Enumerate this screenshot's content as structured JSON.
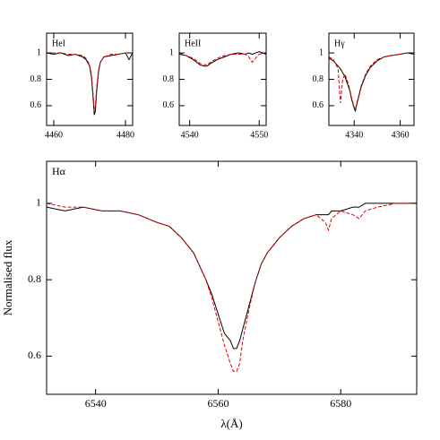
{
  "chart_data": [
    {
      "type": "line",
      "label": "HeI",
      "x": [
        4458,
        4460,
        4462,
        4464,
        4466,
        4468,
        4469,
        4470,
        4470.5,
        4471,
        4471.3,
        4471.6,
        4472,
        4472.5,
        4473,
        4474,
        4476,
        4478,
        4480,
        4481,
        4482
      ],
      "series": [
        {
          "color": "#000000",
          "values": [
            1.0,
            0.99,
            1.0,
            0.98,
            0.99,
            0.97,
            0.95,
            0.9,
            0.82,
            0.65,
            0.53,
            0.56,
            0.72,
            0.86,
            0.93,
            0.97,
            0.98,
            0.99,
            1.0,
            0.95,
            1.0
          ]
        },
        {
          "color": "#e00000",
          "dashed": true,
          "values": [
            1.0,
            1.0,
            1.0,
            0.99,
            0.99,
            0.98,
            0.96,
            0.91,
            0.84,
            0.68,
            0.56,
            0.6,
            0.75,
            0.87,
            0.93,
            0.97,
            0.99,
            0.99,
            1.0,
            1.0,
            1.0
          ]
        }
      ],
      "xlim": [
        4458,
        4482
      ],
      "ylim": [
        0.45,
        1.15
      ],
      "xticks": [
        4460,
        4480
      ],
      "yticks": [
        0.6,
        0.8,
        1
      ]
    },
    {
      "type": "line",
      "label": "HeII",
      "x": [
        4538.5,
        4539.5,
        4540.5,
        4541,
        4541.5,
        4542,
        4542.5,
        4543,
        4544,
        4545,
        4546,
        4547,
        4548,
        4548.5,
        4549,
        4549.5,
        4550,
        4551
      ],
      "series": [
        {
          "color": "#000000",
          "values": [
            0.99,
            0.98,
            0.95,
            0.93,
            0.91,
            0.9,
            0.9,
            0.92,
            0.95,
            0.97,
            0.99,
            1.0,
            0.99,
            1.0,
            0.99,
            1.0,
            1.01,
            0.99
          ]
        },
        {
          "color": "#e00000",
          "dashed": true,
          "values": [
            1.0,
            0.98,
            0.96,
            0.94,
            0.92,
            0.91,
            0.91,
            0.93,
            0.96,
            0.98,
            0.99,
            0.99,
            0.99,
            0.97,
            0.93,
            0.96,
            0.99,
            1.0
          ]
        }
      ],
      "xlim": [
        4538.5,
        4551
      ],
      "ylim": [
        0.45,
        1.15
      ],
      "xticks": [
        4540,
        4550
      ],
      "yticks": [
        0.6,
        0.8,
        1
      ]
    },
    {
      "type": "line",
      "label": "Hγ",
      "x": [
        4329,
        4331,
        4333,
        4334,
        4335,
        4336,
        4337,
        4338,
        4339,
        4340,
        4340.5,
        4341,
        4342,
        4343,
        4345,
        4347,
        4350,
        4353,
        4356,
        4360,
        4363,
        4366
      ],
      "series": [
        {
          "color": "#000000",
          "values": [
            0.96,
            0.94,
            0.9,
            0.88,
            0.85,
            0.82,
            0.77,
            0.72,
            0.64,
            0.58,
            0.56,
            0.6,
            0.67,
            0.74,
            0.83,
            0.89,
            0.94,
            0.97,
            0.98,
            0.99,
            1.0,
            0.99
          ]
        },
        {
          "color": "#e00000",
          "dashed": true,
          "values": [
            0.97,
            0.95,
            0.88,
            0.62,
            0.8,
            0.84,
            0.79,
            0.73,
            0.65,
            0.59,
            0.57,
            0.61,
            0.68,
            0.75,
            0.84,
            0.9,
            0.95,
            0.97,
            0.98,
            0.99,
            1.0,
            1.0
          ]
        }
      ],
      "xlim": [
        4329,
        4366
      ],
      "ylim": [
        0.45,
        1.15
      ],
      "xticks": [
        4340,
        4360
      ],
      "yticks": [
        0.6,
        0.8,
        1
      ]
    },
    {
      "type": "line",
      "label": "Hα",
      "xlabel": "λ(Å)",
      "ylabel": "Normalised flux",
      "x": [
        6532,
        6535,
        6538,
        6541,
        6544,
        6547,
        6550,
        6552,
        6554,
        6556,
        6558,
        6559,
        6560,
        6561,
        6562,
        6562.5,
        6563,
        6563.5,
        6564,
        6565,
        6566,
        6567,
        6568,
        6570,
        6572,
        6574,
        6576,
        6577.5,
        6578,
        6578.5,
        6580,
        6582,
        6583,
        6584,
        6586,
        6589,
        6592.4
      ],
      "series": [
        {
          "color": "#000000",
          "values": [
            0.99,
            0.98,
            0.99,
            0.98,
            0.98,
            0.97,
            0.95,
            0.94,
            0.91,
            0.87,
            0.8,
            0.76,
            0.71,
            0.66,
            0.64,
            0.62,
            0.62,
            0.64,
            0.67,
            0.73,
            0.79,
            0.84,
            0.87,
            0.91,
            0.94,
            0.96,
            0.97,
            0.97,
            0.97,
            0.98,
            0.98,
            0.99,
            0.99,
            1.0,
            1.0,
            1.0,
            1.0
          ]
        },
        {
          "color": "#e00000",
          "dashed": true,
          "values": [
            1.0,
            0.99,
            0.99,
            0.98,
            0.98,
            0.97,
            0.95,
            0.94,
            0.91,
            0.87,
            0.8,
            0.75,
            0.69,
            0.63,
            0.58,
            0.56,
            0.56,
            0.58,
            0.64,
            0.72,
            0.79,
            0.84,
            0.87,
            0.91,
            0.94,
            0.96,
            0.97,
            0.95,
            0.93,
            0.96,
            0.98,
            0.97,
            0.96,
            0.98,
            0.99,
            1.0,
            1.0
          ]
        }
      ],
      "xlim": [
        6532,
        6592.4
      ],
      "ylim": [
        0.5,
        1.11
      ],
      "xticks": [
        6540,
        6560,
        6580
      ],
      "yticks": [
        0.6,
        0.8,
        1
      ]
    }
  ]
}
